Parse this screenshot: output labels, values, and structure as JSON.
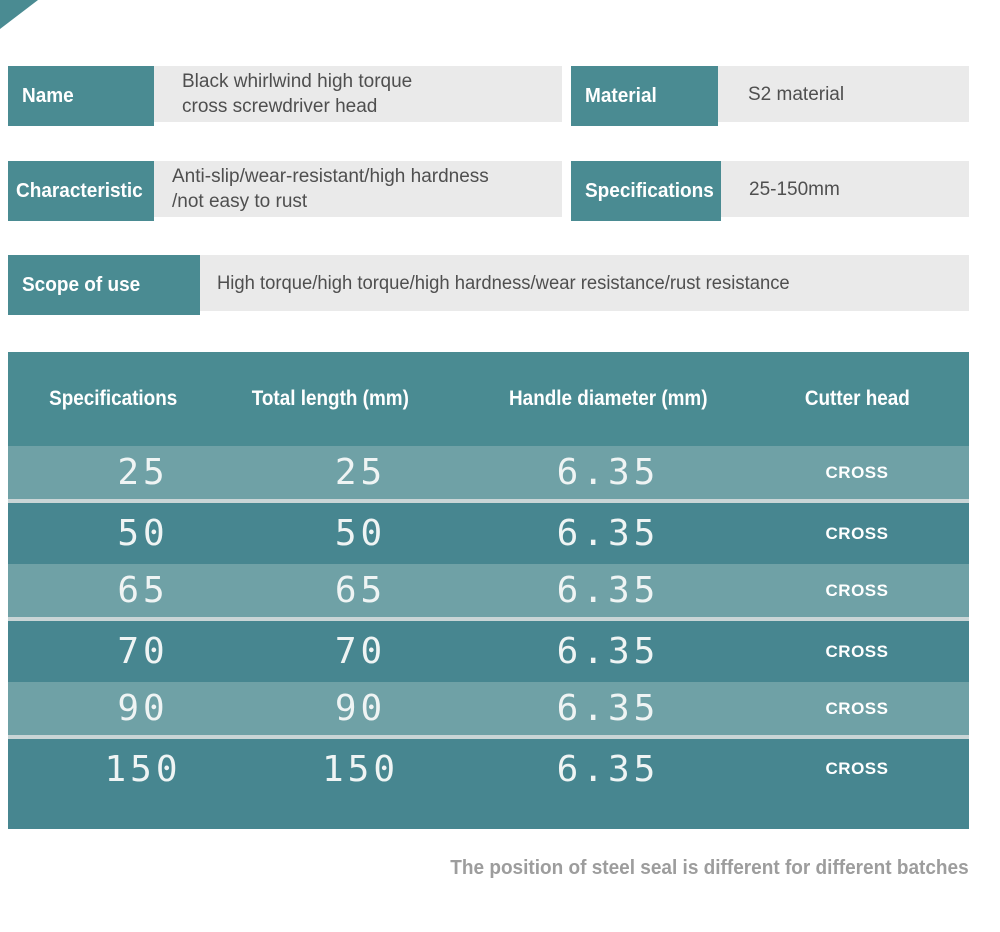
{
  "theme": {
    "teal": "#4A8B92",
    "row_light": "#6FA1A6",
    "row_dark": "#478690",
    "gray_box": "#EAEAEA",
    "text_dark": "#4F4F4F",
    "note_gray": "#9D9D9D",
    "digit_white": "#EFF4F4",
    "separator": "#C9D5D6"
  },
  "info_cards": [
    {
      "label": "Name",
      "value_lines": [
        "Black whirlwind high torque",
        "cross screwdriver head"
      ]
    },
    {
      "label": "Material",
      "value_lines": [
        "S2 material"
      ]
    },
    {
      "label": "Characteristic",
      "value_lines": [
        "Anti-slip/wear-resistant/high hardness",
        "/not easy to rust"
      ]
    },
    {
      "label": "Specifications",
      "value_lines": [
        "25-150mm"
      ]
    },
    {
      "label": "Scope of use",
      "value_lines": [
        "High torque/high torque/high hardness/wear resistance/rust resistance"
      ]
    }
  ],
  "spec_table": {
    "headers": [
      "Specifications",
      "Total length (mm)",
      "Handle diameter (mm)",
      "Cutter head"
    ],
    "rows": [
      {
        "specification": "25",
        "total_length_mm": "25",
        "handle_diameter_mm": "6.35",
        "cutter_head": "CROSS"
      },
      {
        "specification": "50",
        "total_length_mm": "50",
        "handle_diameter_mm": "6.35",
        "cutter_head": "CROSS"
      },
      {
        "specification": "65",
        "total_length_mm": "65",
        "handle_diameter_mm": "6.35",
        "cutter_head": "CROSS"
      },
      {
        "specification": "70",
        "total_length_mm": "70",
        "handle_diameter_mm": "6.35",
        "cutter_head": "CROSS"
      },
      {
        "specification": "90",
        "total_length_mm": "90",
        "handle_diameter_mm": "6.35",
        "cutter_head": "CROSS"
      },
      {
        "specification": "150",
        "total_length_mm": "150",
        "handle_diameter_mm": "6.35",
        "cutter_head": "CROSS"
      }
    ]
  },
  "footnote": "The position of steel seal is different for different batches"
}
